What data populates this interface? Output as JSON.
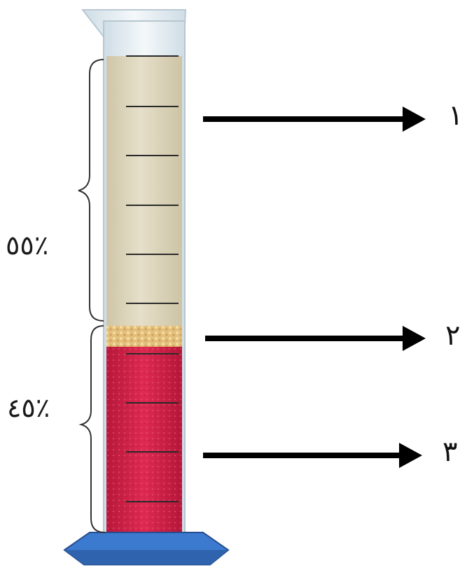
{
  "diagram": {
    "layers": [
      {
        "id": "plasma",
        "percent_label": "٪٥٥",
        "pointer_label": "١",
        "percent": 55
      },
      {
        "id": "buffy-coat",
        "pointer_label": "٢"
      },
      {
        "id": "red-cells",
        "percent_label": "٪٤٥",
        "pointer_label": "٣",
        "percent": 45
      }
    ],
    "colors": {
      "plasma": "#ddd6bf",
      "buffy_coat": "#e8c98a",
      "red_cells": "#d4204a",
      "glass": "#e8f0f4",
      "base": "#3f7fd0",
      "arrow": "#000000"
    }
  }
}
